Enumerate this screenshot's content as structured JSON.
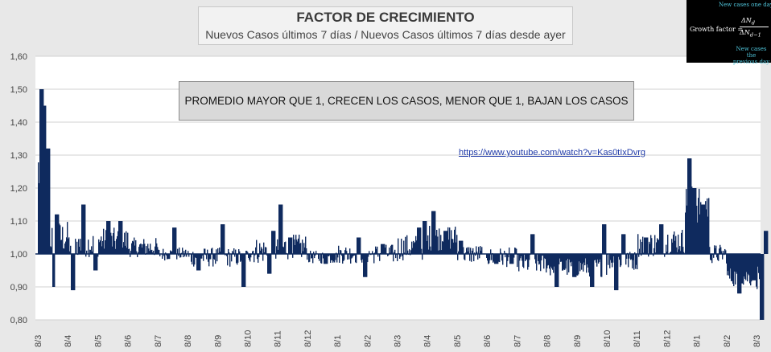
{
  "header": {
    "title": "FACTOR DE CRECIMIENTO",
    "subtitle": "Nuevos Casos últimos 7 días / Nuevos Casos últimos 7 días desde ayer"
  },
  "formula": {
    "top_note": "New cases one day",
    "label": "Growth factor =",
    "numerator": "ΔN",
    "numerator_sub": "d",
    "denominator": "ΔN",
    "denominator_sub": "d−1",
    "bottom_note_1": "New cases the",
    "bottom_note_2": "previous day"
  },
  "annotation": "PROMEDIO MAYOR QUE 1, CRECEN LOS CASOS, MENOR QUE 1, BAJAN LOS CASOS",
  "link": "https://www.youtube.com/watch?v=Kas0tIxDvrg",
  "colors": {
    "bars": "#0f2a5e",
    "background": "#e8e8e8",
    "plot_bg": "#ffffff",
    "grid": "#d0d0d0"
  },
  "chart_data": {
    "type": "bar",
    "title": "FACTOR DE CRECIMIENTO",
    "subtitle": "Nuevos Casos últimos 7 días / Nuevos Casos últimos 7 días desde ayer",
    "ylim": [
      0.8,
      1.6
    ],
    "baseline": 1.0,
    "yticks": [
      "0,80",
      "0,90",
      "1,00",
      "1,10",
      "1,20",
      "1,30",
      "1,40",
      "1,50",
      "1,60"
    ],
    "xticks": [
      "8/3",
      "8/4",
      "8/5",
      "8/6",
      "8/7",
      "8/8",
      "8/9",
      "8/10",
      "8/11",
      "8/12",
      "8/1",
      "8/2",
      "8/3",
      "8/4",
      "8/5",
      "8/6",
      "8/7",
      "8/8",
      "8/9",
      "8/10",
      "8/11",
      "8/12",
      "8/1",
      "8/2",
      "8/3"
    ],
    "grid": "horizontal",
    "segments": [
      {
        "from": 0,
        "to": 0.4,
        "level": 1.25,
        "noise": 0.09,
        "spikes": [
          [
            0.1,
            1.5
          ],
          [
            0.25,
            1.45
          ],
          [
            0.32,
            1.32
          ]
        ]
      },
      {
        "from": 0.4,
        "to": 1.0,
        "level": 1.05,
        "noise": 0.05,
        "spikes": [
          [
            0.55,
            0.9
          ],
          [
            0.62,
            1.12
          ]
        ]
      },
      {
        "from": 1.0,
        "to": 2.0,
        "level": 1.03,
        "noise": 0.04,
        "spikes": [
          [
            1.15,
            0.89
          ],
          [
            1.5,
            1.15
          ],
          [
            1.9,
            0.95
          ]
        ]
      },
      {
        "from": 2.0,
        "to": 3.0,
        "level": 1.04,
        "noise": 0.04,
        "spikes": [
          [
            2.35,
            1.1
          ],
          [
            2.75,
            1.1
          ]
        ]
      },
      {
        "from": 3.0,
        "to": 4.0,
        "level": 1.02,
        "noise": 0.03,
        "spikes": []
      },
      {
        "from": 4.0,
        "to": 5.0,
        "level": 1.0,
        "noise": 0.02,
        "spikes": [
          [
            4.55,
            1.08
          ]
        ]
      },
      {
        "from": 5.0,
        "to": 6.0,
        "level": 0.99,
        "noise": 0.03,
        "spikes": [
          [
            5.35,
            0.95
          ]
        ]
      },
      {
        "from": 6.0,
        "to": 7.0,
        "level": 0.99,
        "noise": 0.03,
        "spikes": [
          [
            6.15,
            1.09
          ],
          [
            6.85,
            0.9
          ]
        ]
      },
      {
        "from": 7.0,
        "to": 8.0,
        "level": 1.01,
        "noise": 0.04,
        "spikes": [
          [
            7.7,
            0.94
          ],
          [
            7.85,
            1.07
          ]
        ]
      },
      {
        "from": 8.0,
        "to": 9.0,
        "level": 1.02,
        "noise": 0.04,
        "spikes": [
          [
            8.1,
            1.15
          ],
          [
            8.4,
            1.05
          ]
        ]
      },
      {
        "from": 9.0,
        "to": 10.0,
        "level": 0.99,
        "noise": 0.02,
        "spikes": [
          [
            9.6,
            0.97
          ]
        ]
      },
      {
        "from": 10.0,
        "to": 11.0,
        "level": 1.0,
        "noise": 0.03,
        "spikes": [
          [
            10.7,
            1.05
          ],
          [
            10.9,
            0.93
          ]
        ]
      },
      {
        "from": 11.0,
        "to": 12.0,
        "level": 1.0,
        "noise": 0.03,
        "spikes": [
          [
            11.5,
            1.03
          ]
        ]
      },
      {
        "from": 12.0,
        "to": 13.0,
        "level": 1.02,
        "noise": 0.04,
        "spikes": [
          [
            12.7,
            1.08
          ],
          [
            12.9,
            1.1
          ]
        ]
      },
      {
        "from": 13.0,
        "to": 14.0,
        "level": 1.05,
        "noise": 0.04,
        "spikes": [
          [
            13.2,
            1.13
          ],
          [
            13.6,
            1.07
          ]
        ]
      },
      {
        "from": 14.0,
        "to": 15.0,
        "level": 1.0,
        "noise": 0.03,
        "spikes": [
          [
            14.1,
            1.04
          ],
          [
            14.9,
            1.0
          ]
        ]
      },
      {
        "from": 15.0,
        "to": 16.0,
        "level": 0.99,
        "noise": 0.03,
        "spikes": [
          [
            15.3,
            0.97
          ],
          [
            15.8,
            0.97
          ]
        ]
      },
      {
        "from": 16.0,
        "to": 17.0,
        "level": 0.97,
        "noise": 0.03,
        "spikes": [
          [
            16.5,
            1.06
          ]
        ]
      },
      {
        "from": 17.0,
        "to": 18.0,
        "level": 0.96,
        "noise": 0.03,
        "spikes": [
          [
            17.3,
            0.9
          ],
          [
            17.9,
            0.93
          ]
        ]
      },
      {
        "from": 18.0,
        "to": 19.0,
        "level": 0.96,
        "noise": 0.03,
        "spikes": [
          [
            18.5,
            0.9
          ],
          [
            18.9,
            1.09
          ]
        ]
      },
      {
        "from": 19.0,
        "to": 20.0,
        "level": 0.98,
        "noise": 0.03,
        "spikes": [
          [
            19.3,
            0.89
          ],
          [
            19.55,
            1.06
          ]
        ]
      },
      {
        "from": 20.0,
        "to": 21.0,
        "level": 1.03,
        "noise": 0.04,
        "spikes": [
          [
            20.3,
            1.05
          ],
          [
            20.8,
            1.09
          ]
        ]
      },
      {
        "from": 21.0,
        "to": 21.6,
        "level": 1.04,
        "noise": 0.04,
        "spikes": []
      },
      {
        "from": 21.6,
        "to": 22.4,
        "level": 1.15,
        "noise": 0.06,
        "spikes": [
          [
            21.75,
            1.29
          ],
          [
            21.9,
            1.2
          ],
          [
            22.2,
            1.15
          ]
        ]
      },
      {
        "from": 22.4,
        "to": 23.0,
        "level": 1.0,
        "noise": 0.03,
        "spikes": []
      },
      {
        "from": 23.0,
        "to": 24.0,
        "level": 0.93,
        "noise": 0.03,
        "spikes": [
          [
            23.4,
            0.88
          ],
          [
            23.9,
            0.92
          ]
        ]
      },
      {
        "from": 24.0,
        "to": 24.35,
        "level": 0.93,
        "noise": 0.04,
        "spikes": [
          [
            24.15,
            0.8
          ],
          [
            24.3,
            1.07
          ]
        ]
      }
    ]
  }
}
